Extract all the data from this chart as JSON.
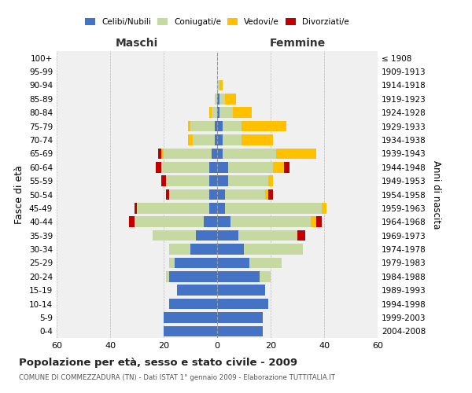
{
  "age_groups": [
    "0-4",
    "5-9",
    "10-14",
    "15-19",
    "20-24",
    "25-29",
    "30-34",
    "35-39",
    "40-44",
    "45-49",
    "50-54",
    "55-59",
    "60-64",
    "65-69",
    "70-74",
    "75-79",
    "80-84",
    "85-89",
    "90-94",
    "95-99",
    "100+"
  ],
  "birth_years": [
    "2004-2008",
    "1999-2003",
    "1994-1998",
    "1989-1993",
    "1984-1988",
    "1979-1983",
    "1974-1978",
    "1969-1973",
    "1964-1968",
    "1959-1963",
    "1954-1958",
    "1949-1953",
    "1944-1948",
    "1939-1943",
    "1934-1938",
    "1929-1933",
    "1924-1928",
    "1919-1923",
    "1914-1918",
    "1909-1913",
    "≤ 1908"
  ],
  "colors": {
    "celibi": "#4472c4",
    "coniugati": "#c5d9a0",
    "vedovi": "#ffc000",
    "divorziati": "#c00000",
    "background": "#f0f0f0"
  },
  "male": {
    "celibi": [
      20,
      20,
      18,
      15,
      18,
      16,
      10,
      8,
      5,
      3,
      3,
      3,
      3,
      2,
      1,
      1,
      0,
      0,
      0,
      0,
      0
    ],
    "coniugati": [
      0,
      0,
      0,
      0,
      1,
      2,
      8,
      16,
      26,
      27,
      15,
      16,
      18,
      18,
      8,
      9,
      2,
      1,
      0,
      0,
      0
    ],
    "vedovi": [
      0,
      0,
      0,
      0,
      0,
      0,
      0,
      0,
      0,
      0,
      0,
      0,
      0,
      1,
      2,
      1,
      1,
      0,
      0,
      0,
      0
    ],
    "divorziati": [
      0,
      0,
      0,
      0,
      0,
      0,
      0,
      0,
      2,
      1,
      1,
      2,
      2,
      1,
      0,
      0,
      0,
      0,
      0,
      0,
      0
    ]
  },
  "female": {
    "celibi": [
      17,
      17,
      19,
      18,
      16,
      12,
      10,
      8,
      5,
      3,
      3,
      4,
      4,
      2,
      2,
      2,
      1,
      1,
      0,
      0,
      0
    ],
    "coniugati": [
      0,
      0,
      0,
      0,
      4,
      12,
      22,
      22,
      30,
      36,
      15,
      15,
      17,
      20,
      7,
      7,
      5,
      2,
      1,
      0,
      0
    ],
    "vedovi": [
      0,
      0,
      0,
      0,
      0,
      0,
      0,
      0,
      2,
      2,
      1,
      2,
      4,
      15,
      12,
      17,
      7,
      4,
      1,
      0,
      0
    ],
    "divorziati": [
      0,
      0,
      0,
      0,
      0,
      0,
      0,
      3,
      2,
      0,
      2,
      0,
      2,
      0,
      0,
      0,
      0,
      0,
      0,
      0,
      0
    ]
  },
  "title": "Popolazione per età, sesso e stato civile - 2009",
  "subtitle": "COMUNE DI COMMEZZADURA (TN) - Dati ISTAT 1° gennaio 2009 - Elaborazione TUTTITALIA.IT",
  "ylabel_left": "Fasce di età",
  "ylabel_right": "Anni di nascita",
  "label_maschi": "Maschi",
  "label_femmine": "Femmine",
  "legend_labels": [
    "Celibi/Nubili",
    "Coniugati/e",
    "Vedovi/e",
    "Divorziati/e"
  ]
}
